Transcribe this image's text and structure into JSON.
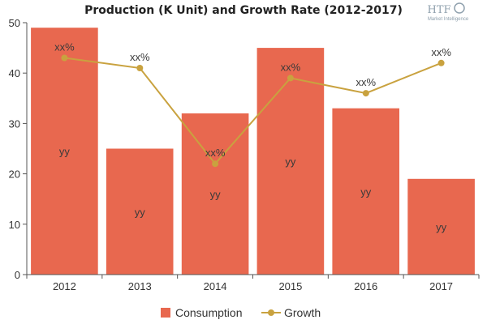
{
  "colors": {
    "bar": "#e8684f",
    "line": "#c9a23f",
    "axis": "#555555",
    "logo": "#8fa0ad"
  },
  "logo": {
    "text": "HTF",
    "subtext": "Market Intelligence"
  },
  "legend": {
    "placement": "bottom-center"
  },
  "chart_data": {
    "type": "bar",
    "title": "Production (K Unit) and Growth Rate (2012-2017)",
    "xlabel": "",
    "ylabel": "",
    "categories": [
      "2012",
      "2013",
      "2014",
      "2015",
      "2016",
      "2017"
    ],
    "ylim": [
      0,
      50
    ],
    "yticks": [
      0,
      10,
      20,
      30,
      40,
      50
    ],
    "grid": false,
    "series": [
      {
        "name": "Consumption",
        "type": "bar",
        "values": [
          49,
          25,
          32,
          45,
          33,
          19
        ],
        "labels": [
          "yy",
          "yy",
          "yy",
          "yy",
          "yy",
          "yy"
        ]
      },
      {
        "name": "Growth",
        "type": "line",
        "values": [
          43,
          41,
          22,
          39,
          36,
          42
        ],
        "labels": [
          "xx%",
          "xx%",
          "xx%",
          "xx%",
          "xx%",
          "xx%"
        ]
      }
    ]
  }
}
